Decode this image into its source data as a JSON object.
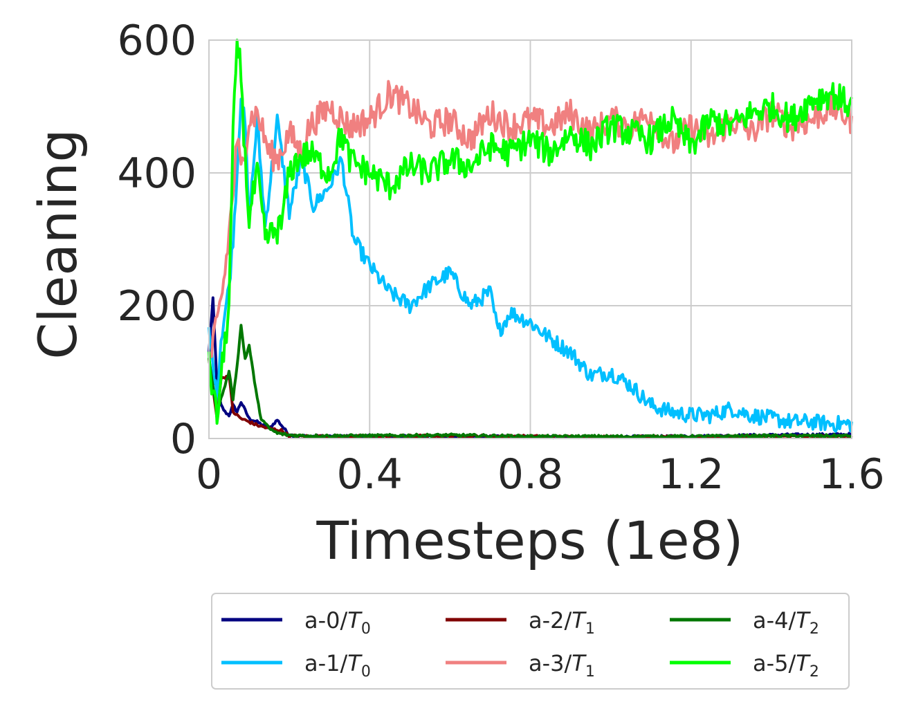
{
  "chart_data": {
    "type": "line",
    "title": "",
    "xlabel": "Timesteps (1e8)",
    "ylabel": "Cleaning",
    "xlim": [
      0,
      1.6
    ],
    "ylim": [
      0,
      600
    ],
    "xticks": [
      0,
      0.4,
      0.8,
      1.2,
      1.6
    ],
    "xtick_labels": [
      "0",
      "0.4",
      "0.8",
      "1.2",
      "1.6"
    ],
    "yticks": [
      0,
      200,
      400,
      600
    ],
    "ytick_labels": [
      "0",
      "200",
      "400",
      "600"
    ],
    "grid": true,
    "legend": {
      "placement": "bottom",
      "columns": 3
    },
    "series": [
      {
        "name": "a-0/T",
        "sub": "0",
        "color": "#000080",
        "x": [
          0,
          0.01,
          0.02,
          0.03,
          0.04,
          0.05,
          0.06,
          0.07,
          0.08,
          0.1,
          0.12,
          0.15,
          0.17,
          0.2,
          0.25,
          0.4,
          0.6,
          0.8,
          1.0,
          1.2,
          1.4,
          1.6
        ],
        "y": [
          130,
          210,
          80,
          50,
          40,
          35,
          50,
          40,
          55,
          30,
          25,
          15,
          28,
          5,
          3,
          3,
          3,
          2,
          2,
          3,
          5,
          6
        ]
      },
      {
        "name": "a-1/T",
        "sub": "0",
        "color": "#00BFFF",
        "x": [
          0,
          0.02,
          0.03,
          0.05,
          0.06,
          0.07,
          0.08,
          0.09,
          0.1,
          0.12,
          0.14,
          0.17,
          0.2,
          0.23,
          0.26,
          0.3,
          0.33,
          0.36,
          0.38,
          0.4,
          0.45,
          0.5,
          0.55,
          0.6,
          0.65,
          0.7,
          0.72,
          0.75,
          0.8,
          0.85,
          0.9,
          0.95,
          1.0,
          1.05,
          1.1,
          1.15,
          1.2,
          1.25,
          1.3,
          1.35,
          1.4,
          1.45,
          1.5,
          1.55,
          1.6
        ],
        "y": [
          160,
          60,
          150,
          230,
          300,
          400,
          520,
          470,
          330,
          480,
          320,
          480,
          340,
          420,
          350,
          380,
          420,
          300,
          280,
          260,
          220,
          200,
          230,
          250,
          200,
          220,
          160,
          190,
          175,
          150,
          130,
          95,
          100,
          80,
          50,
          40,
          35,
          35,
          45,
          35,
          30,
          25,
          25,
          22,
          22
        ]
      },
      {
        "name": "a-2/T",
        "sub": "1",
        "color": "#800000",
        "x": [
          0,
          0.02,
          0.03,
          0.05,
          0.06,
          0.08,
          0.1,
          0.12,
          0.15,
          0.18,
          0.2,
          0.25,
          0.4,
          0.6,
          0.8,
          1.0,
          1.2,
          1.4,
          1.6
        ],
        "y": [
          120,
          30,
          90,
          95,
          40,
          30,
          25,
          20,
          15,
          12,
          4,
          3,
          3,
          4,
          3,
          2,
          2,
          3,
          3
        ]
      },
      {
        "name": "a-3/T",
        "sub": "1",
        "color": "#F08080",
        "x": [
          0,
          0.02,
          0.04,
          0.06,
          0.07,
          0.08,
          0.1,
          0.12,
          0.15,
          0.17,
          0.2,
          0.23,
          0.25,
          0.3,
          0.35,
          0.4,
          0.45,
          0.5,
          0.55,
          0.6,
          0.65,
          0.7,
          0.75,
          0.8,
          0.85,
          0.9,
          0.95,
          1.0,
          1.05,
          1.1,
          1.15,
          1.2,
          1.25,
          1.3,
          1.35,
          1.4,
          1.45,
          1.5,
          1.55,
          1.6
        ],
        "y": [
          110,
          170,
          250,
          370,
          450,
          400,
          480,
          490,
          430,
          420,
          460,
          430,
          470,
          500,
          470,
          480,
          520,
          500,
          470,
          480,
          450,
          490,
          470,
          480,
          470,
          490,
          460,
          480,
          470,
          490,
          440,
          470,
          450,
          480,
          460,
          490,
          470,
          480,
          500,
          480
        ]
      },
      {
        "name": "a-4/T",
        "sub": "2",
        "color": "#007700",
        "x": [
          0,
          0.02,
          0.03,
          0.05,
          0.06,
          0.07,
          0.08,
          0.09,
          0.1,
          0.11,
          0.12,
          0.13,
          0.15,
          0.17,
          0.2,
          0.25,
          0.4,
          0.6,
          0.8,
          1.0,
          1.2,
          1.4,
          1.6
        ],
        "y": [
          120,
          40,
          60,
          100,
          60,
          110,
          170,
          120,
          140,
          100,
          60,
          30,
          15,
          8,
          5,
          4,
          4,
          5,
          3,
          3,
          3,
          4,
          4
        ]
      },
      {
        "name": "a-5/T",
        "sub": "2",
        "color": "#00FF00",
        "x": [
          0,
          0.02,
          0.03,
          0.05,
          0.06,
          0.07,
          0.08,
          0.09,
          0.1,
          0.12,
          0.14,
          0.16,
          0.18,
          0.2,
          0.22,
          0.25,
          0.3,
          0.33,
          0.35,
          0.4,
          0.45,
          0.5,
          0.55,
          0.6,
          0.65,
          0.7,
          0.75,
          0.8,
          0.85,
          0.9,
          0.95,
          1.0,
          1.05,
          1.1,
          1.15,
          1.2,
          1.25,
          1.3,
          1.35,
          1.4,
          1.45,
          1.5,
          1.55,
          1.6
        ],
        "y": [
          110,
          30,
          90,
          200,
          450,
          600,
          550,
          420,
          330,
          400,
          300,
          310,
          320,
          400,
          420,
          430,
          400,
          460,
          420,
          400,
          380,
          410,
          400,
          420,
          410,
          440,
          430,
          450,
          430,
          460,
          440,
          470,
          460,
          450,
          480,
          440,
          480,
          470,
          490,
          500,
          480,
          510,
          520,
          500
        ]
      }
    ]
  }
}
